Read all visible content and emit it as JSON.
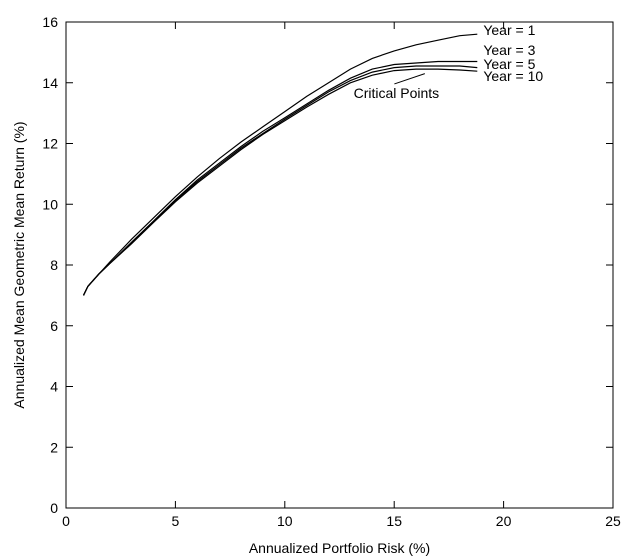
{
  "chart_data": {
    "type": "line",
    "title": "",
    "xlabel": "Annualized Portfolio Risk (%)",
    "ylabel": "Annualized Mean Geometric Mean Return (%)",
    "xlim": [
      0,
      25
    ],
    "ylim": [
      0,
      16
    ],
    "xticks": [
      0,
      5,
      10,
      15,
      20,
      25
    ],
    "yticks": [
      0,
      2,
      4,
      6,
      8,
      10,
      12,
      14,
      16
    ],
    "grid": false,
    "line_color": "#000000",
    "series": [
      {
        "name": "Year = 1",
        "x": [
          0.8,
          1.0,
          1.5,
          2.0,
          3.0,
          4.0,
          5.0,
          6.0,
          7.0,
          8.0,
          9.0,
          10.0,
          11.0,
          12.0,
          13.0,
          14.0,
          15.0,
          16.0,
          17.0,
          18.0,
          18.8
        ],
        "y": [
          7.0,
          7.3,
          7.7,
          8.1,
          8.85,
          9.55,
          10.25,
          10.9,
          11.5,
          12.05,
          12.55,
          13.05,
          13.55,
          14.0,
          14.45,
          14.8,
          15.05,
          15.25,
          15.4,
          15.55,
          15.6
        ]
      },
      {
        "name": "Year = 3",
        "x": [
          0.8,
          1.0,
          1.5,
          2.0,
          3.0,
          4.0,
          5.0,
          6.0,
          7.0,
          8.0,
          9.0,
          10.0,
          11.0,
          12.0,
          13.0,
          14.0,
          15.0,
          16.0,
          17.0,
          18.0,
          18.8
        ],
        "y": [
          7.0,
          7.3,
          7.7,
          8.05,
          8.75,
          9.45,
          10.15,
          10.8,
          11.35,
          11.9,
          12.4,
          12.85,
          13.3,
          13.75,
          14.15,
          14.45,
          14.6,
          14.65,
          14.7,
          14.7,
          14.7
        ]
      },
      {
        "name": "Year = 5",
        "x": [
          0.8,
          1.0,
          1.5,
          2.0,
          3.0,
          4.0,
          5.0,
          6.0,
          7.0,
          8.0,
          9.0,
          10.0,
          11.0,
          12.0,
          13.0,
          14.0,
          15.0,
          16.0,
          17.0,
          18.0,
          18.8
        ],
        "y": [
          7.0,
          7.3,
          7.7,
          8.05,
          8.72,
          9.42,
          10.12,
          10.75,
          11.3,
          11.85,
          12.33,
          12.8,
          13.25,
          13.7,
          14.07,
          14.35,
          14.5,
          14.55,
          14.55,
          14.55,
          14.5
        ]
      },
      {
        "name": "Year = 10",
        "x": [
          0.8,
          1.0,
          1.5,
          2.0,
          3.0,
          4.0,
          5.0,
          6.0,
          7.0,
          8.0,
          9.0,
          10.0,
          11.0,
          12.0,
          13.0,
          14.0,
          15.0,
          16.0,
          17.0,
          18.0,
          18.8
        ],
        "y": [
          7.0,
          7.3,
          7.7,
          8.05,
          8.7,
          9.4,
          10.08,
          10.7,
          11.25,
          11.8,
          12.3,
          12.75,
          13.2,
          13.62,
          14.0,
          14.25,
          14.4,
          14.45,
          14.45,
          14.42,
          14.38
        ]
      }
    ],
    "annotations": [
      {
        "text": "Critical Points",
        "x": 15.1,
        "y": 13.5,
        "pointer_to": [
          16.4,
          14.3
        ]
      }
    ]
  }
}
